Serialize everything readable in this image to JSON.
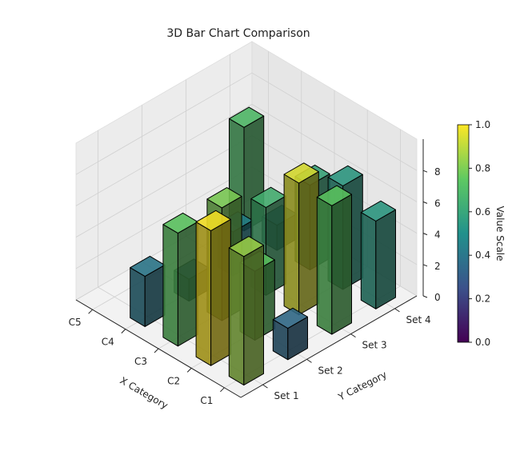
{
  "chart_data": {
    "type": "bar3d",
    "title": "3D Bar Chart Comparison",
    "xlabel": "X Category",
    "ylabel": "Y Category",
    "zlabel": "",
    "x_categories": [
      "C1",
      "C2",
      "C3",
      "C4",
      "C5"
    ],
    "y_categories": [
      "Set 1",
      "Set 2",
      "Set 3",
      "Set 4"
    ],
    "z_ticks": [
      0,
      2,
      4,
      6,
      8
    ],
    "zlim": [
      0,
      10
    ],
    "colormap": "viridis",
    "colorbar": {
      "label": "Value Scale",
      "ticks": [
        "0.0",
        "0.2",
        "0.4",
        "0.6",
        "0.8",
        "1.0"
      ],
      "range": [
        0,
        1
      ]
    },
    "bars": [
      {
        "x": "C1",
        "y": "Set 1",
        "value": 8.2,
        "color_value": 0.85
      },
      {
        "x": "C1",
        "y": "Set 2",
        "value": 2.0,
        "color_value": 0.35
      },
      {
        "x": "C1",
        "y": "Set 3",
        "value": 8.2,
        "color_value": 0.75
      },
      {
        "x": "C1",
        "y": "Set 4",
        "value": 5.6,
        "color_value": 0.55
      },
      {
        "x": "C2",
        "y": "Set 1",
        "value": 8.6,
        "color_value": 1.0
      },
      {
        "x": "C2",
        "y": "Set 2",
        "value": 4.4,
        "color_value": 0.75
      },
      {
        "x": "C2",
        "y": "Set 3",
        "value": 8.4,
        "color_value": 0.95
      },
      {
        "x": "C2",
        "y": "Set 4",
        "value": 6.6,
        "color_value": 0.55
      },
      {
        "x": "C3",
        "y": "Set 1",
        "value": 7.2,
        "color_value": 0.75
      },
      {
        "x": "C3",
        "y": "Set 2",
        "value": 7.2,
        "color_value": 0.8
      },
      {
        "x": "C3",
        "y": "Set 3",
        "value": 5.6,
        "color_value": 0.65
      },
      {
        "x": "C3",
        "y": "Set 4",
        "value": 5.4,
        "color_value": 0.6
      },
      {
        "x": "C4",
        "y": "Set 1",
        "value": 3.2,
        "color_value": 0.4
      },
      {
        "x": "C4",
        "y": "Set 2",
        "value": 1.4,
        "color_value": 0.25
      },
      {
        "x": "C4",
        "y": "Set 3",
        "value": 2.8,
        "color_value": 0.45
      },
      {
        "x": "C4",
        "y": "Set 4",
        "value": 1.6,
        "color_value": 0.35
      },
      {
        "x": "C5",
        "y": "Set 4",
        "value": 6.6,
        "color_value": 0.7
      }
    ]
  }
}
